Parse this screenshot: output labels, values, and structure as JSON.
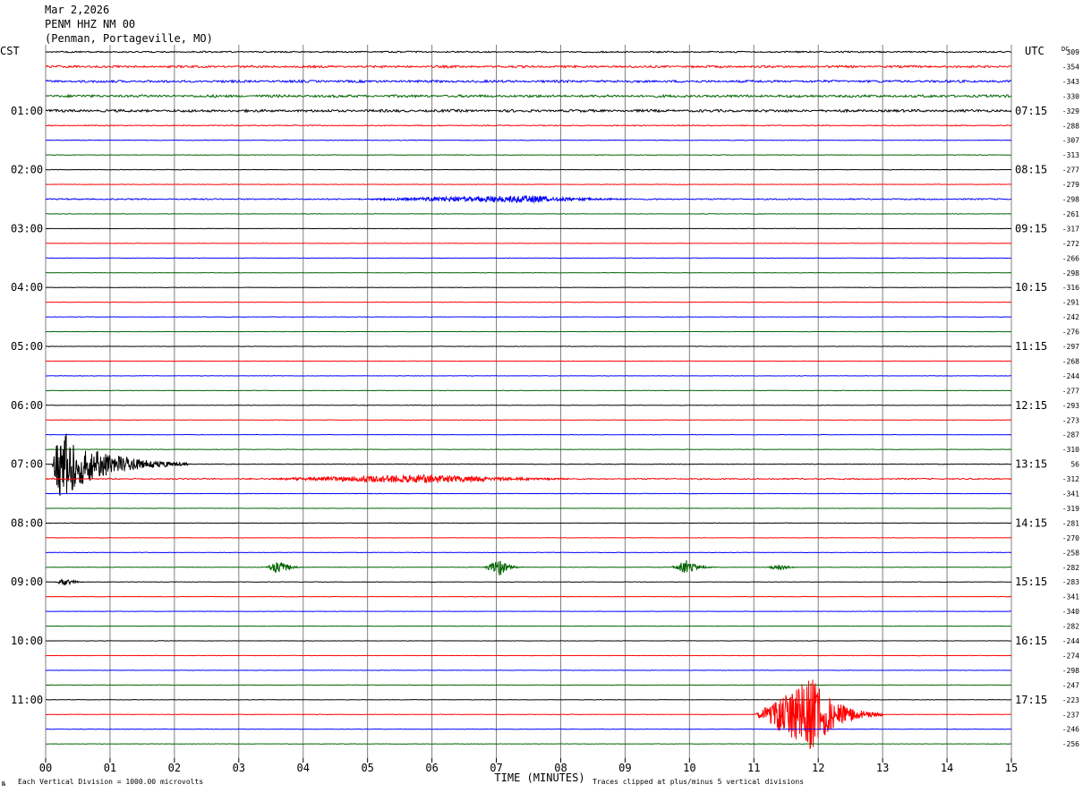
{
  "header": {
    "date": "Mar 2,2026",
    "station": "PENM HHZ NM 00",
    "location": "(Penman, Portageville, MO)"
  },
  "left_axis_label": "CST",
  "right_axis_label": "UTC",
  "dc_label": "DC",
  "footer": {
    "scale_note": "Each Vertical Division = 1000.00 microvolts",
    "clip_note": "Traces clipped at plus/minus 5 vertical divisions",
    "small_mark": "№"
  },
  "colors": {
    "trace_cycle": [
      "#000000",
      "#ff0000",
      "#0000ff",
      "#006400"
    ],
    "grid": "#808080"
  },
  "chart_data": {
    "type": "line",
    "title": "",
    "xlabel": "TIME (MINUTES)",
    "ylabel": "",
    "xlim": [
      0,
      15
    ],
    "x_ticks": [
      "00",
      "01",
      "02",
      "03",
      "04",
      "05",
      "06",
      "07",
      "08",
      "09",
      "10",
      "11",
      "12",
      "13",
      "14",
      "15"
    ],
    "minutes_per_trace": 15,
    "trace_count": 48,
    "left_hour_labels": [
      "01:00",
      "02:00",
      "03:00",
      "04:00",
      "05:00",
      "06:00",
      "07:00",
      "08:00",
      "09:00",
      "10:00",
      "11:00"
    ],
    "right_hour_labels": [
      "07:15",
      "08:15",
      "09:15",
      "10:15",
      "11:15",
      "12:15",
      "13:15",
      "14:15",
      "15:15",
      "16:15",
      "17:15"
    ],
    "dc_offsets": [
      "309",
      "-354",
      "-343",
      "-330",
      "-329",
      "-288",
      "-307",
      "-313",
      "-277",
      "-279",
      "-298",
      "-261",
      "-317",
      "-272",
      "-266",
      "-298",
      "-316",
      "-291",
      "-242",
      "-276",
      "-297",
      "-268",
      "-244",
      "-277",
      "-293",
      "-273",
      "-287",
      "-310",
      "56",
      "-312",
      "-341",
      "-319",
      "-281",
      "-270",
      "-258",
      "-282",
      "-283",
      "-341",
      "-340",
      "-282",
      "-244",
      "-274",
      "-298",
      "-247",
      "-223",
      "-237",
      "-246",
      "-256"
    ],
    "grid": true,
    "noise_level": [
      0.9,
      1.3,
      1.4,
      1.5,
      1.5,
      0.6,
      0.35,
      0.35,
      0.3,
      0.3,
      0.8,
      0.3,
      0.25,
      0.25,
      0.25,
      0.25,
      0.25,
      0.25,
      0.25,
      0.25,
      0.25,
      0.25,
      0.25,
      0.25,
      0.25,
      0.25,
      0.25,
      0.25,
      0.35,
      0.8,
      0.3,
      0.25,
      0.25,
      0.25,
      0.25,
      0.25,
      0.25,
      0.25,
      0.25,
      0.25,
      0.25,
      0.25,
      0.25,
      0.25,
      0.25,
      0.3,
      0.25,
      0.25
    ],
    "events": [
      {
        "trace": 28,
        "start_minute": 0.1,
        "peak_minute": 0.2,
        "end_minute": 2.2,
        "amplitude_divisions": 5,
        "clipped": true
      },
      {
        "trace": 29,
        "start_minute": 3.0,
        "peak_minute": 6.0,
        "end_minute": 9.5,
        "amplitude_divisions": 0.6,
        "clipped": false
      },
      {
        "trace": 35,
        "start_minute": 3.4,
        "peak_minute": 3.65,
        "end_minute": 4.0,
        "amplitude_divisions": 1.0,
        "clipped": false
      },
      {
        "trace": 35,
        "start_minute": 6.8,
        "peak_minute": 7.05,
        "end_minute": 7.4,
        "amplitude_divisions": 1.2,
        "clipped": false
      },
      {
        "trace": 35,
        "start_minute": 9.7,
        "peak_minute": 9.95,
        "end_minute": 10.4,
        "amplitude_divisions": 1.0,
        "clipped": false
      },
      {
        "trace": 35,
        "start_minute": 11.2,
        "peak_minute": 11.4,
        "end_minute": 11.7,
        "amplitude_divisions": 0.5,
        "clipped": false
      },
      {
        "trace": 36,
        "start_minute": 0.15,
        "peak_minute": 0.3,
        "end_minute": 0.7,
        "amplitude_divisions": 0.6,
        "clipped": false
      },
      {
        "trace": 45,
        "start_minute": 11.0,
        "peak_minute": 11.9,
        "end_minute": 13.0,
        "amplitude_divisions": 5,
        "clipped": true
      },
      {
        "trace": 10,
        "start_minute": 4.5,
        "peak_minute": 7.5,
        "end_minute": 10.0,
        "amplitude_divisions": 0.5,
        "clipped": false
      }
    ]
  }
}
